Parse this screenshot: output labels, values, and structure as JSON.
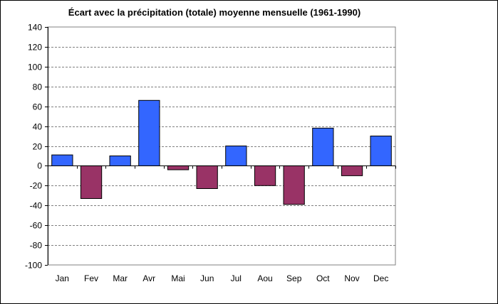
{
  "chart_data": {
    "type": "bar",
    "title": "Écart avec la précipitation (totale) moyenne mensuelle (1961-1990)",
    "xlabel": "",
    "ylabel": "",
    "categories": [
      "Jan",
      "Fev",
      "Mar",
      "Avr",
      "Mai",
      "Jun",
      "Jul",
      "Aou",
      "Sep",
      "Oct",
      "Nov",
      "Dec"
    ],
    "values": [
      11,
      -33,
      10,
      66,
      -4,
      -23,
      20,
      -20,
      -39,
      38,
      -10,
      30
    ],
    "ylim": [
      -100,
      140
    ],
    "yticks": [
      140,
      120,
      100,
      80,
      60,
      40,
      20,
      0,
      -20,
      -40,
      -60,
      -80,
      -100
    ],
    "grid": true,
    "legend": "none",
    "colors": {
      "positive": "#3366ff",
      "negative": "#993366",
      "plot_background": "#ffffff",
      "gridline": "#808080"
    }
  }
}
